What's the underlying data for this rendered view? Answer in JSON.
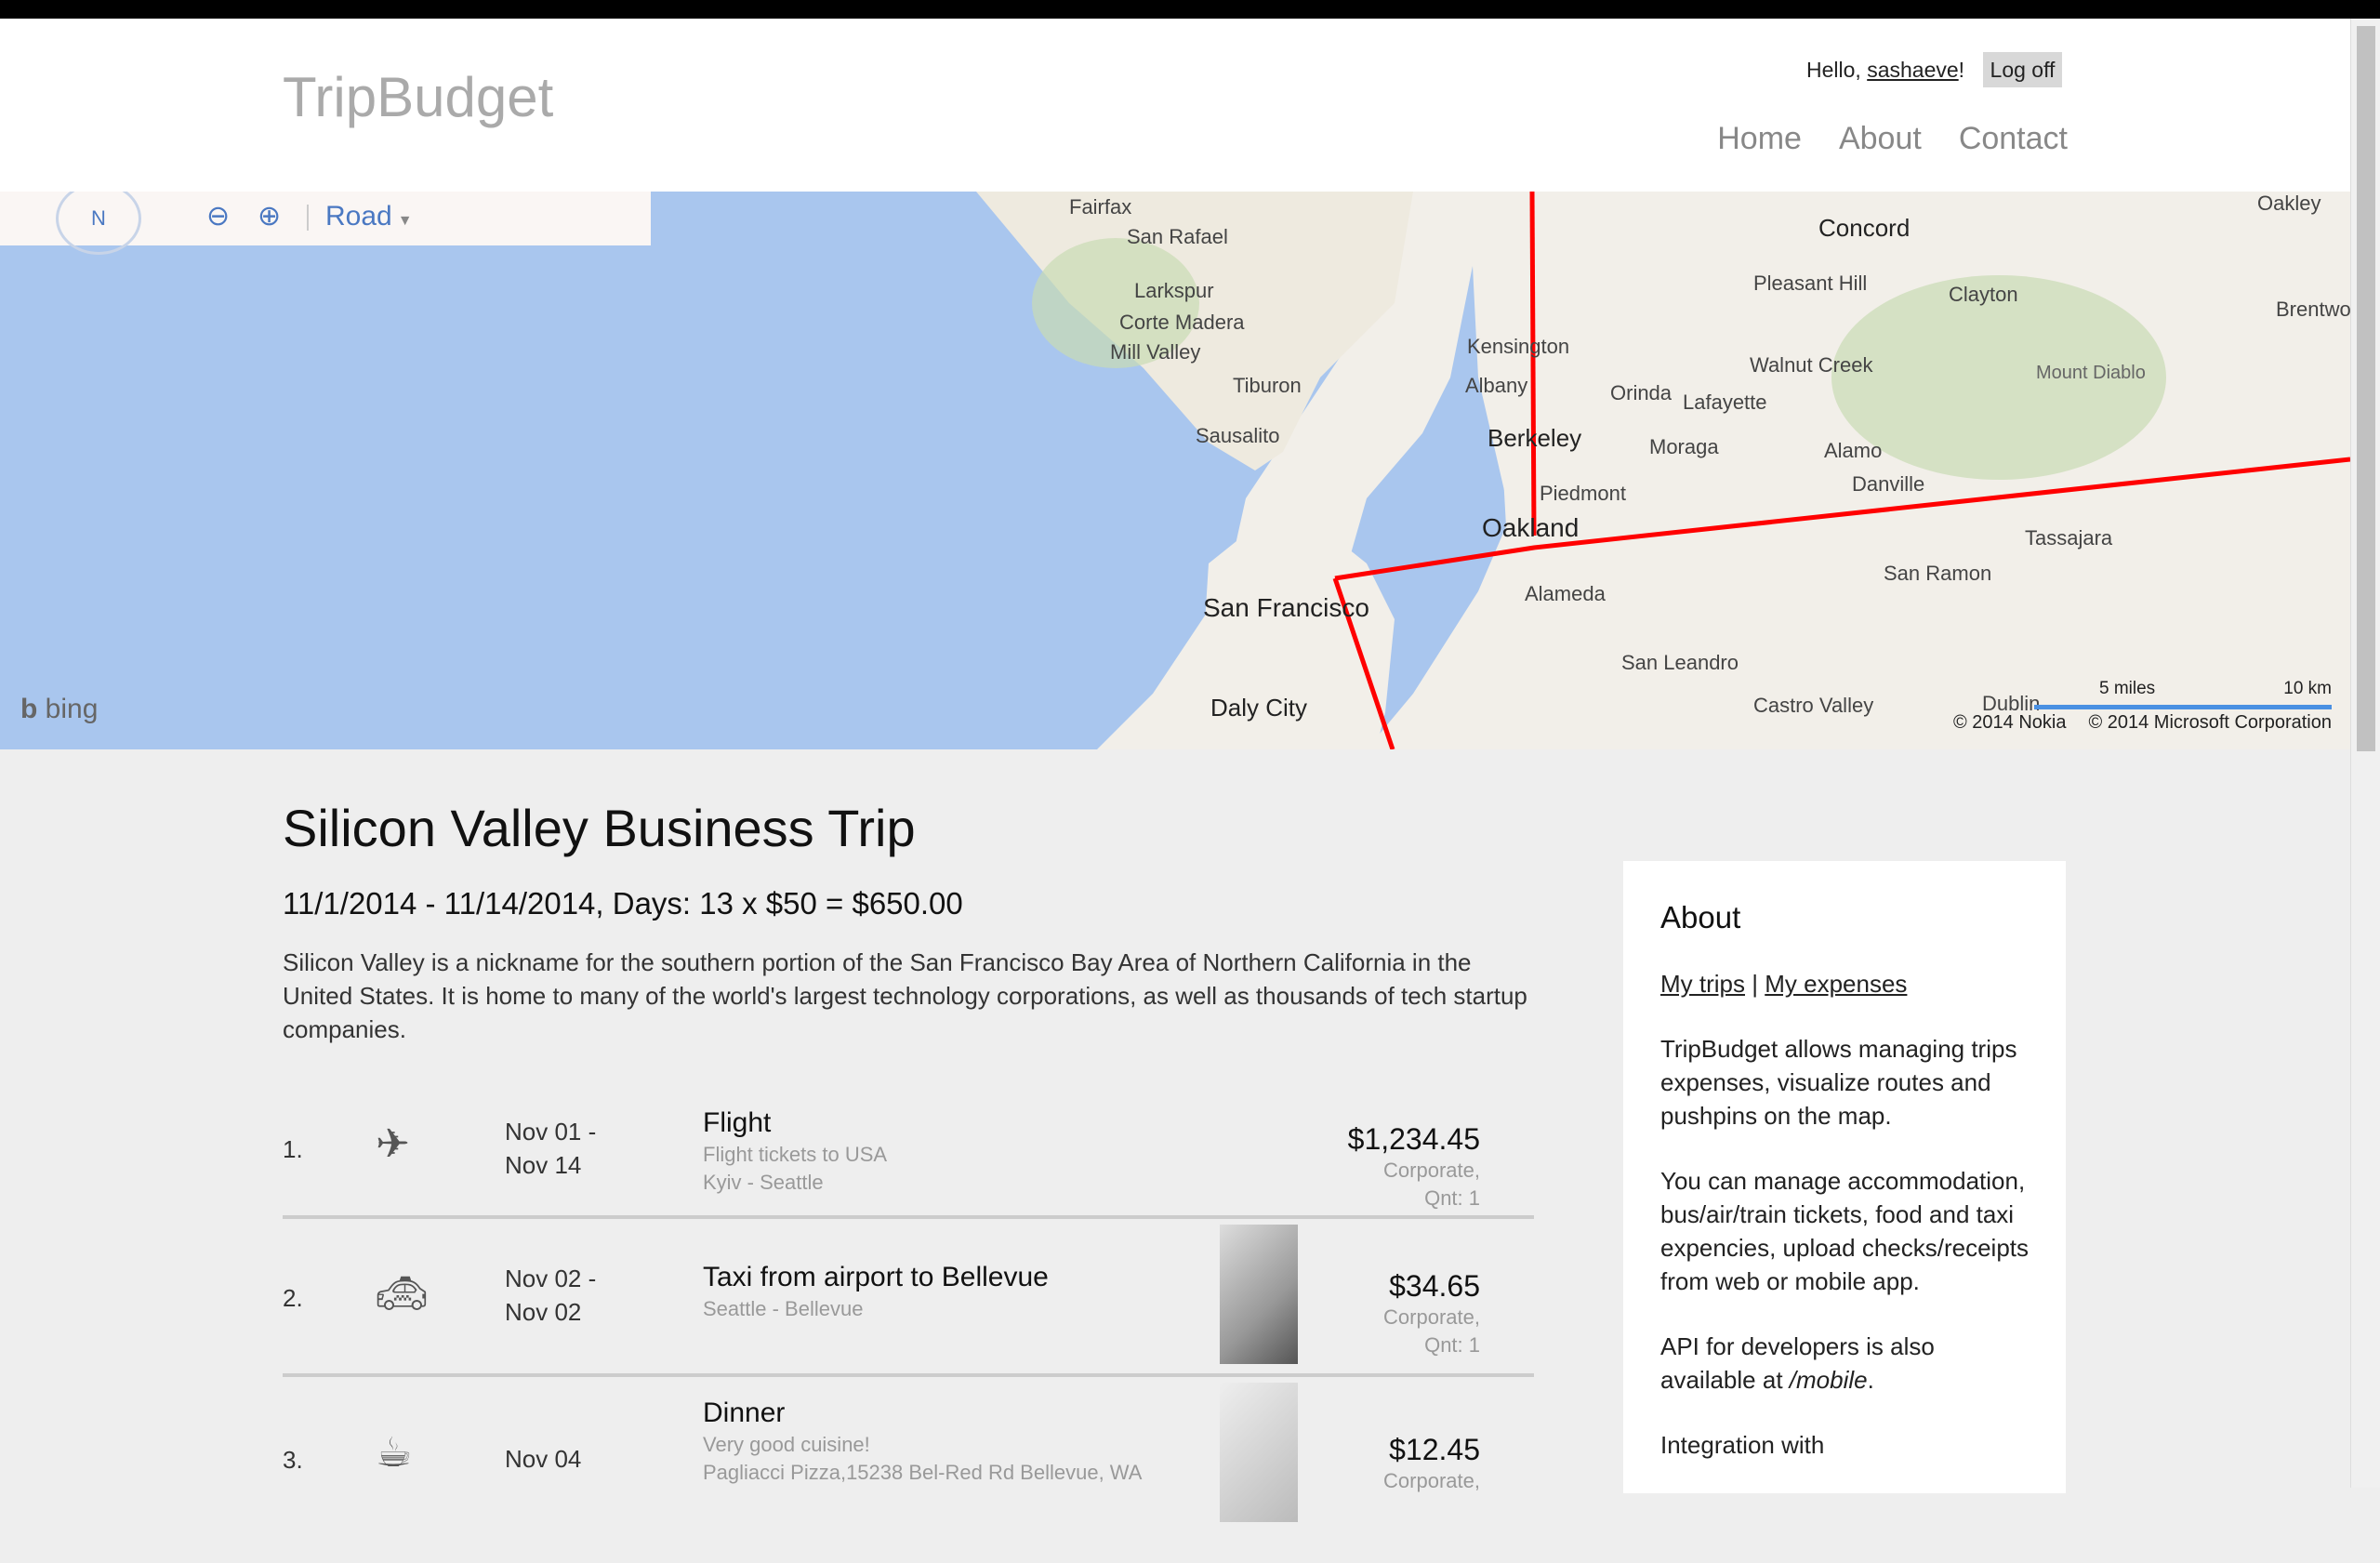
{
  "app": {
    "title": "TripBudget"
  },
  "header": {
    "hello": "Hello,",
    "username": "sashaeve",
    "suffix": "!",
    "logoff": "Log off",
    "nav": [
      {
        "label": "Home"
      },
      {
        "label": "About"
      },
      {
        "label": "Contact"
      }
    ]
  },
  "map": {
    "compass": "N",
    "map_type": "Road",
    "provider": "bing",
    "copyright_nokia": "© 2014 Nokia",
    "copyright_ms": "© 2014 Microsoft Corporation",
    "scale_miles": "5 miles",
    "scale_km": "10 km",
    "labels": [
      "Fairfax",
      "San Rafael",
      "Larkspur",
      "Corte Madera",
      "Mill Valley",
      "Tiburon",
      "Sausalito",
      "San Francisco",
      "Daly City",
      "Kensington",
      "Albany",
      "Berkeley",
      "Piedmont",
      "Oakland",
      "Alameda",
      "San Leandro",
      "Castro Valley",
      "Concord",
      "Pleasant Hill",
      "Clayton",
      "Walnut Creek",
      "Orinda",
      "Lafayette",
      "Moraga",
      "Alamo",
      "Danville",
      "San Ramon",
      "Tassajara",
      "Mount Diablo",
      "Oakley",
      "Brentwood",
      "Dublin"
    ],
    "route_color": "#ff0000",
    "water_color": "#a9c6ee",
    "land_color": "#f2efe9"
  },
  "trip": {
    "title": "Silicon Valley Business Trip",
    "summary": "11/1/2014 - 11/14/2014, Days: 13 x $50 = $650.00",
    "description": "Silicon Valley is a nickname for the southern portion of the San Francisco Bay Area of Northern California in the United States. It is home to many of the world's largest technology corporations, as well as thousands of tech startup companies."
  },
  "expenses": [
    {
      "num": "1.",
      "icon": "airplane-icon",
      "date_from": "Nov 01 -",
      "date_to": "Nov 14",
      "title": "Flight",
      "line1": "Flight tickets to USA",
      "line2": "Kyiv - Seattle",
      "amount": "$1,234.45",
      "type": "Corporate,",
      "qnt": "Qnt: 1"
    },
    {
      "num": "2.",
      "icon": "taxi-icon",
      "date_from": "Nov 02 -",
      "date_to": "Nov 02",
      "title": "Taxi from airport to Bellevue",
      "line1": "Seattle - Bellevue",
      "amount": "$34.65",
      "type": "Corporate,",
      "qnt": "Qnt: 1"
    },
    {
      "num": "3.",
      "icon": "coffee-cup-icon",
      "date_from": "Nov 04",
      "title": "Dinner",
      "line1": "Very good cuisine!",
      "line2": "Pagliacci Pizza,15238 Bel-Red Rd Bellevue, WA",
      "amount": "$12.45",
      "type": "Corporate,"
    }
  ],
  "sidebar": {
    "title": "About",
    "link_trips": "My trips",
    "link_sep": "|",
    "link_expenses": "My expenses",
    "p1": "TripBudget allows managing trips expenses, visualize routes and pushpins on the map.",
    "p2": "You can manage accommodation, bus/air/train tickets, food and taxi expencies, upload checks/receipts from web or mobile app.",
    "p3_pre": "API for developers is also available at ",
    "p3_em": "/mobile",
    "p3_post": ".",
    "p4": "Integration with"
  }
}
